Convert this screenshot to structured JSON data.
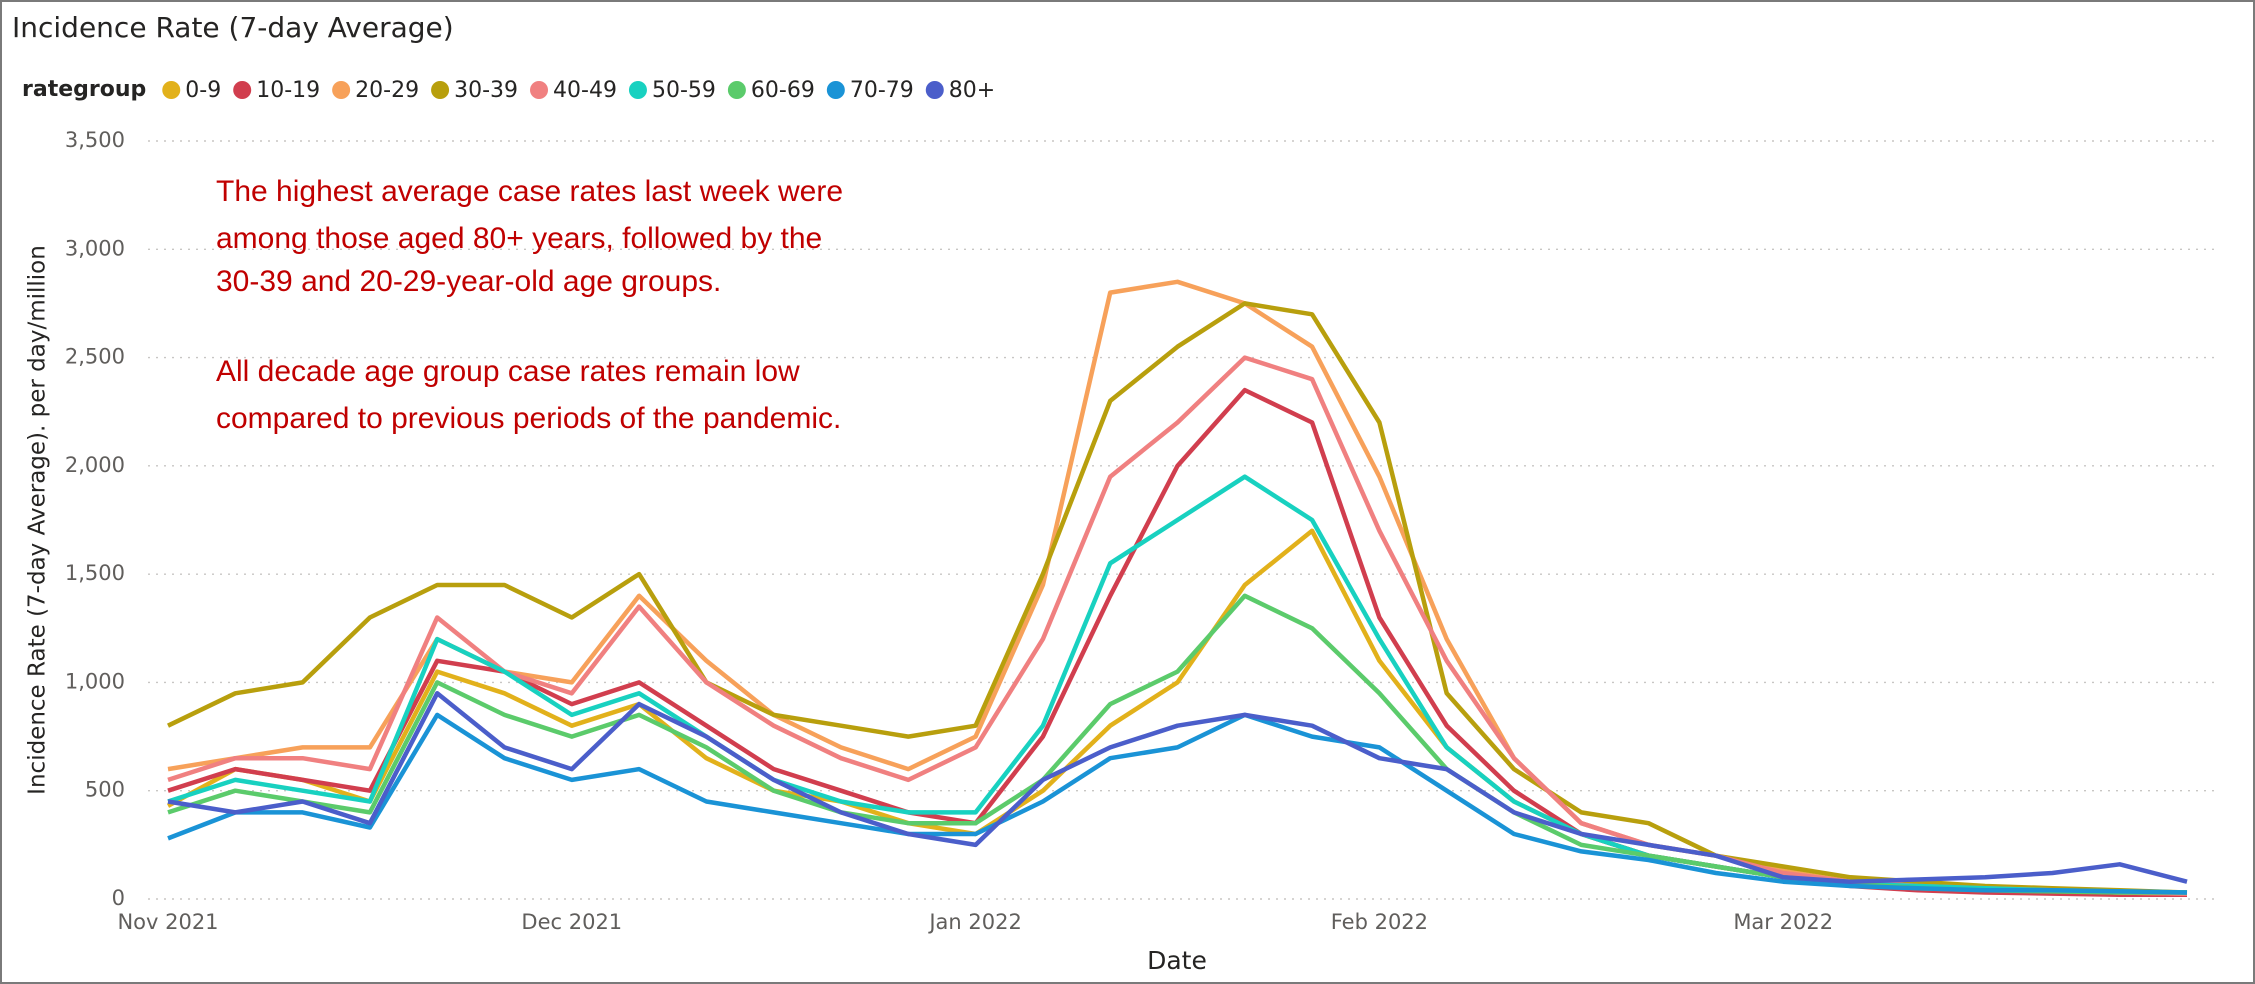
{
  "chart_data": {
    "type": "line",
    "title": "Incidence Rate (7-day Average)",
    "legend_title": "rategroup",
    "x_label": "Date",
    "y_label": "Incidence Rate (7-day Average). per day/million",
    "annotation": [
      "The highest average case rates last week were",
      "among those aged 80+ years, followed by the",
      "30-39 and 20-29-year-old age groups.",
      "All decade age group case rates remain low",
      "compared to previous periods of the pandemic."
    ],
    "categories": [
      "Nov 2021",
      null,
      null,
      null,
      null,
      null,
      "Dec 2021",
      null,
      null,
      null,
      null,
      null,
      "Jan 2022",
      null,
      null,
      null,
      null,
      null,
      "Feb 2022",
      null,
      null,
      null,
      null,
      null,
      "Mar 2022",
      null,
      null,
      null,
      null,
      null,
      null
    ],
    "ylim": [
      0,
      3500
    ],
    "yticks": [
      0,
      500,
      {
        "value": 1000,
        "label": "1,000"
      },
      {
        "value": 1500,
        "label": "1,500"
      },
      {
        "value": 2000,
        "label": "2,000"
      },
      {
        "value": 2500,
        "label": "2,500"
      },
      {
        "value": 3000,
        "label": "3,000"
      },
      {
        "value": 3500,
        "label": "3,500"
      }
    ],
    "grid": true,
    "legend": "top",
    "series": [
      {
        "name": "0-9",
        "color": "#E2B11B",
        "values": [
          430,
          600,
          550,
          450,
          1050,
          950,
          800,
          900,
          650,
          500,
          450,
          350,
          300,
          500,
          800,
          1000,
          1450,
          1700,
          1100,
          700,
          450,
          300,
          200,
          150,
          100,
          70,
          50,
          40,
          30,
          25,
          20
        ]
      },
      {
        "name": "10-19",
        "color": "#D13E4E",
        "values": [
          500,
          600,
          550,
          500,
          1100,
          1050,
          900,
          1000,
          800,
          600,
          500,
          400,
          350,
          750,
          1400,
          2000,
          2350,
          2200,
          1300,
          800,
          500,
          300,
          200,
          150,
          100,
          60,
          40,
          30,
          25,
          20,
          20
        ]
      },
      {
        "name": "20-29",
        "color": "#F7A15A",
        "values": [
          600,
          650,
          700,
          700,
          1200,
          1050,
          1000,
          1400,
          1100,
          850,
          700,
          600,
          750,
          1450,
          2800,
          2850,
          2750,
          2550,
          1950,
          1200,
          650,
          350,
          250,
          200,
          130,
          80,
          60,
          50,
          40,
          30,
          25
        ]
      },
      {
        "name": "30-39",
        "color": "#B89F0D",
        "values": [
          800,
          950,
          1000,
          1300,
          1450,
          1450,
          1300,
          1500,
          1000,
          850,
          800,
          750,
          800,
          1500,
          2300,
          2550,
          2750,
          2700,
          2200,
          950,
          600,
          400,
          350,
          200,
          150,
          100,
          80,
          60,
          50,
          40,
          30
        ]
      },
      {
        "name": "40-49",
        "color": "#F08080",
        "values": [
          550,
          650,
          650,
          600,
          1300,
          1050,
          950,
          1350,
          1000,
          800,
          650,
          550,
          700,
          1200,
          1950,
          2200,
          2500,
          2400,
          1700,
          1100,
          650,
          350,
          250,
          200,
          120,
          80,
          60,
          50,
          40,
          30,
          25
        ]
      },
      {
        "name": "50-59",
        "color": "#18D1C0",
        "values": [
          450,
          550,
          500,
          450,
          1200,
          1050,
          850,
          950,
          750,
          550,
          450,
          400,
          400,
          800,
          1550,
          1750,
          1950,
          1750,
          1200,
          700,
          450,
          300,
          200,
          150,
          100,
          70,
          60,
          50,
          40,
          35,
          30
        ]
      },
      {
        "name": "60-69",
        "color": "#5BCB6B",
        "values": [
          400,
          500,
          450,
          400,
          1000,
          850,
          750,
          850,
          700,
          500,
          400,
          350,
          350,
          550,
          900,
          1050,
          1400,
          1250,
          950,
          600,
          400,
          250,
          200,
          150,
          100,
          70,
          50,
          40,
          35,
          30,
          30
        ]
      },
      {
        "name": "70-79",
        "color": "#1A93D6",
        "values": [
          280,
          400,
          400,
          330,
          850,
          650,
          550,
          600,
          450,
          400,
          350,
          300,
          300,
          450,
          650,
          700,
          850,
          750,
          700,
          500,
          300,
          220,
          180,
          120,
          80,
          60,
          50,
          40,
          40,
          35,
          30
        ]
      },
      {
        "name": "80+",
        "color": "#4B5ECA",
        "values": [
          450,
          400,
          450,
          350,
          950,
          700,
          600,
          900,
          750,
          550,
          400,
          300,
          250,
          550,
          700,
          800,
          850,
          800,
          650,
          600,
          400,
          300,
          250,
          200,
          100,
          80,
          90,
          100,
          120,
          160,
          80
        ]
      }
    ]
  }
}
